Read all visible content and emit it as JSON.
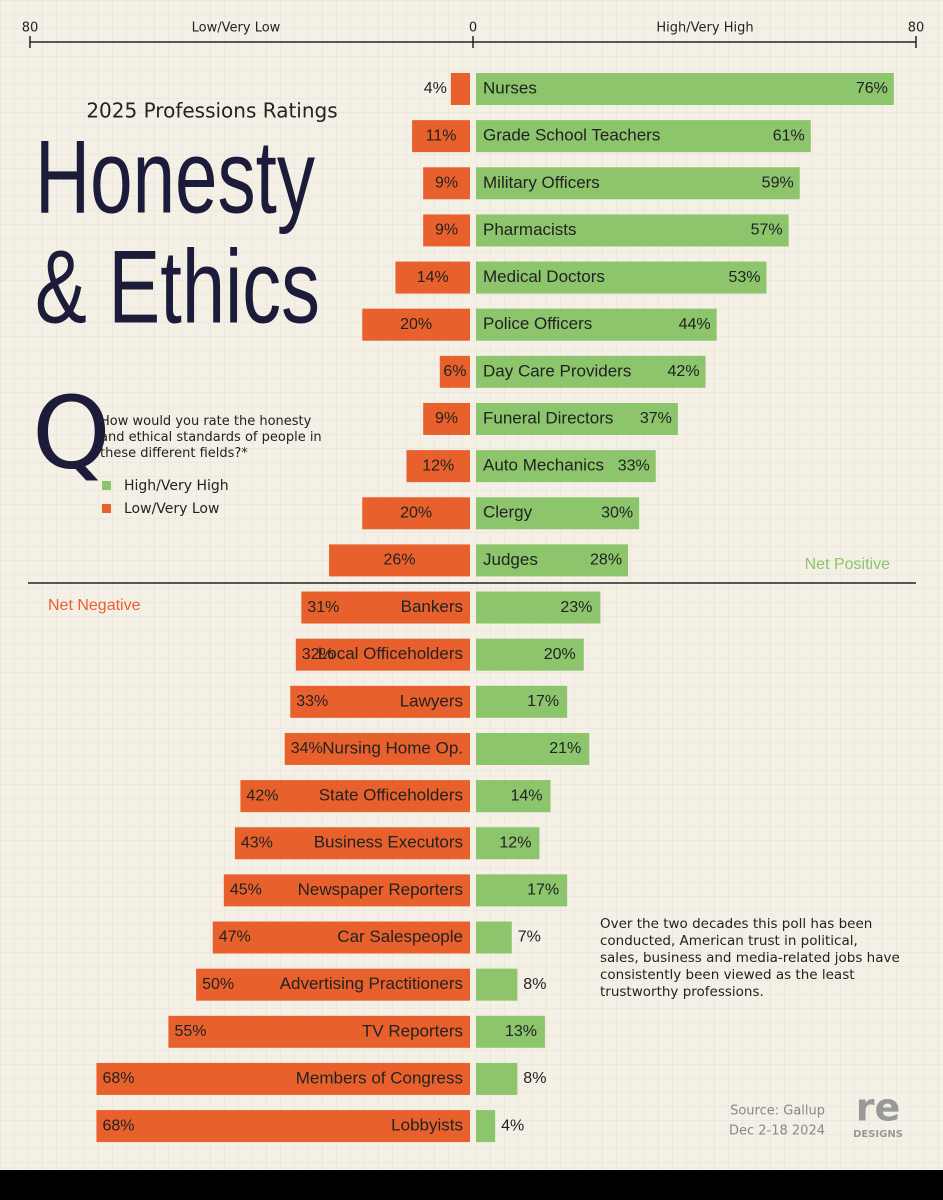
{
  "chart_data": {
    "type": "diverging_bar",
    "title": "2025 Professions Ratings",
    "headline": [
      "Honesty",
      "& Ethics"
    ],
    "question_mark": "Q",
    "question": "How would you rate the honesty and ethical standards of people in these different fields?*",
    "axis_labels": [
      "Low/Very Low",
      "High/Very High"
    ],
    "xlim": [
      -80,
      80
    ],
    "xticks": [
      {
        "value": -80,
        "label": "80"
      },
      0,
      80
    ],
    "categories": [
      "Nurses",
      "Grade School Teachers",
      "Military Officers",
      "Pharmacists",
      "Medical Doctors",
      "Police Officers",
      "Day Care Providers",
      "Funeral Directors",
      "Auto Mechanics",
      "Clergy",
      "Judges",
      "Bankers",
      "Local Officeholders",
      "Lawyers",
      "Nursing Home Op.",
      "State Officeholders",
      "Business Executors",
      "Newspaper Reporters",
      "Car Salespeople",
      "Advertising Practitioners",
      "TV Reporters",
      "Members of Congress",
      "Lobbyists"
    ],
    "series": [
      {
        "name": "High/Very High",
        "color": "#8cc56b",
        "values": [
          76,
          61,
          59,
          57,
          53,
          44,
          42,
          37,
          33,
          30,
          28,
          23,
          20,
          17,
          21,
          14,
          12,
          17,
          7,
          8,
          13,
          8,
          4
        ],
        "value_labels": [
          "76%",
          "61%",
          "59%",
          "57%",
          "53%",
          "44%",
          "42%",
          "37%",
          "33%",
          "30%",
          "28%",
          "23%",
          "20%",
          "17%",
          "21%",
          "14%",
          "12%",
          "17%",
          "7%",
          "8%",
          "13%",
          "8%",
          "4%"
        ]
      },
      {
        "name": "Low/Very Low",
        "color": "#e8612c",
        "values": [
          4,
          11,
          9,
          9,
          14,
          20,
          6,
          9,
          12,
          20,
          26,
          31,
          32,
          33,
          34,
          42,
          43,
          45,
          47,
          50,
          55,
          68,
          68
        ],
        "value_labels": [
          "4%",
          "11%",
          "9%",
          "9%",
          "14%",
          "20%",
          "6%",
          "9%",
          "12%",
          "20%",
          "26%",
          "31%",
          "32%",
          "33%",
          "34%",
          "42%",
          "43%",
          "45%",
          "47%",
          "50%",
          "55%",
          "68%",
          "68%"
        ]
      }
    ],
    "net_positive": "Net Positive",
    "net_negative": "Net Negative",
    "note": "Over the two decades this poll has been conducted, American trust in political, sales, business and media-related jobs have consistently been viewed as the least trustworthy professions.",
    "source": "Source: Gallup",
    "date": "Dec 2-18 2024",
    "logo": "re",
    "logo_sub": "DESIGNS"
  }
}
